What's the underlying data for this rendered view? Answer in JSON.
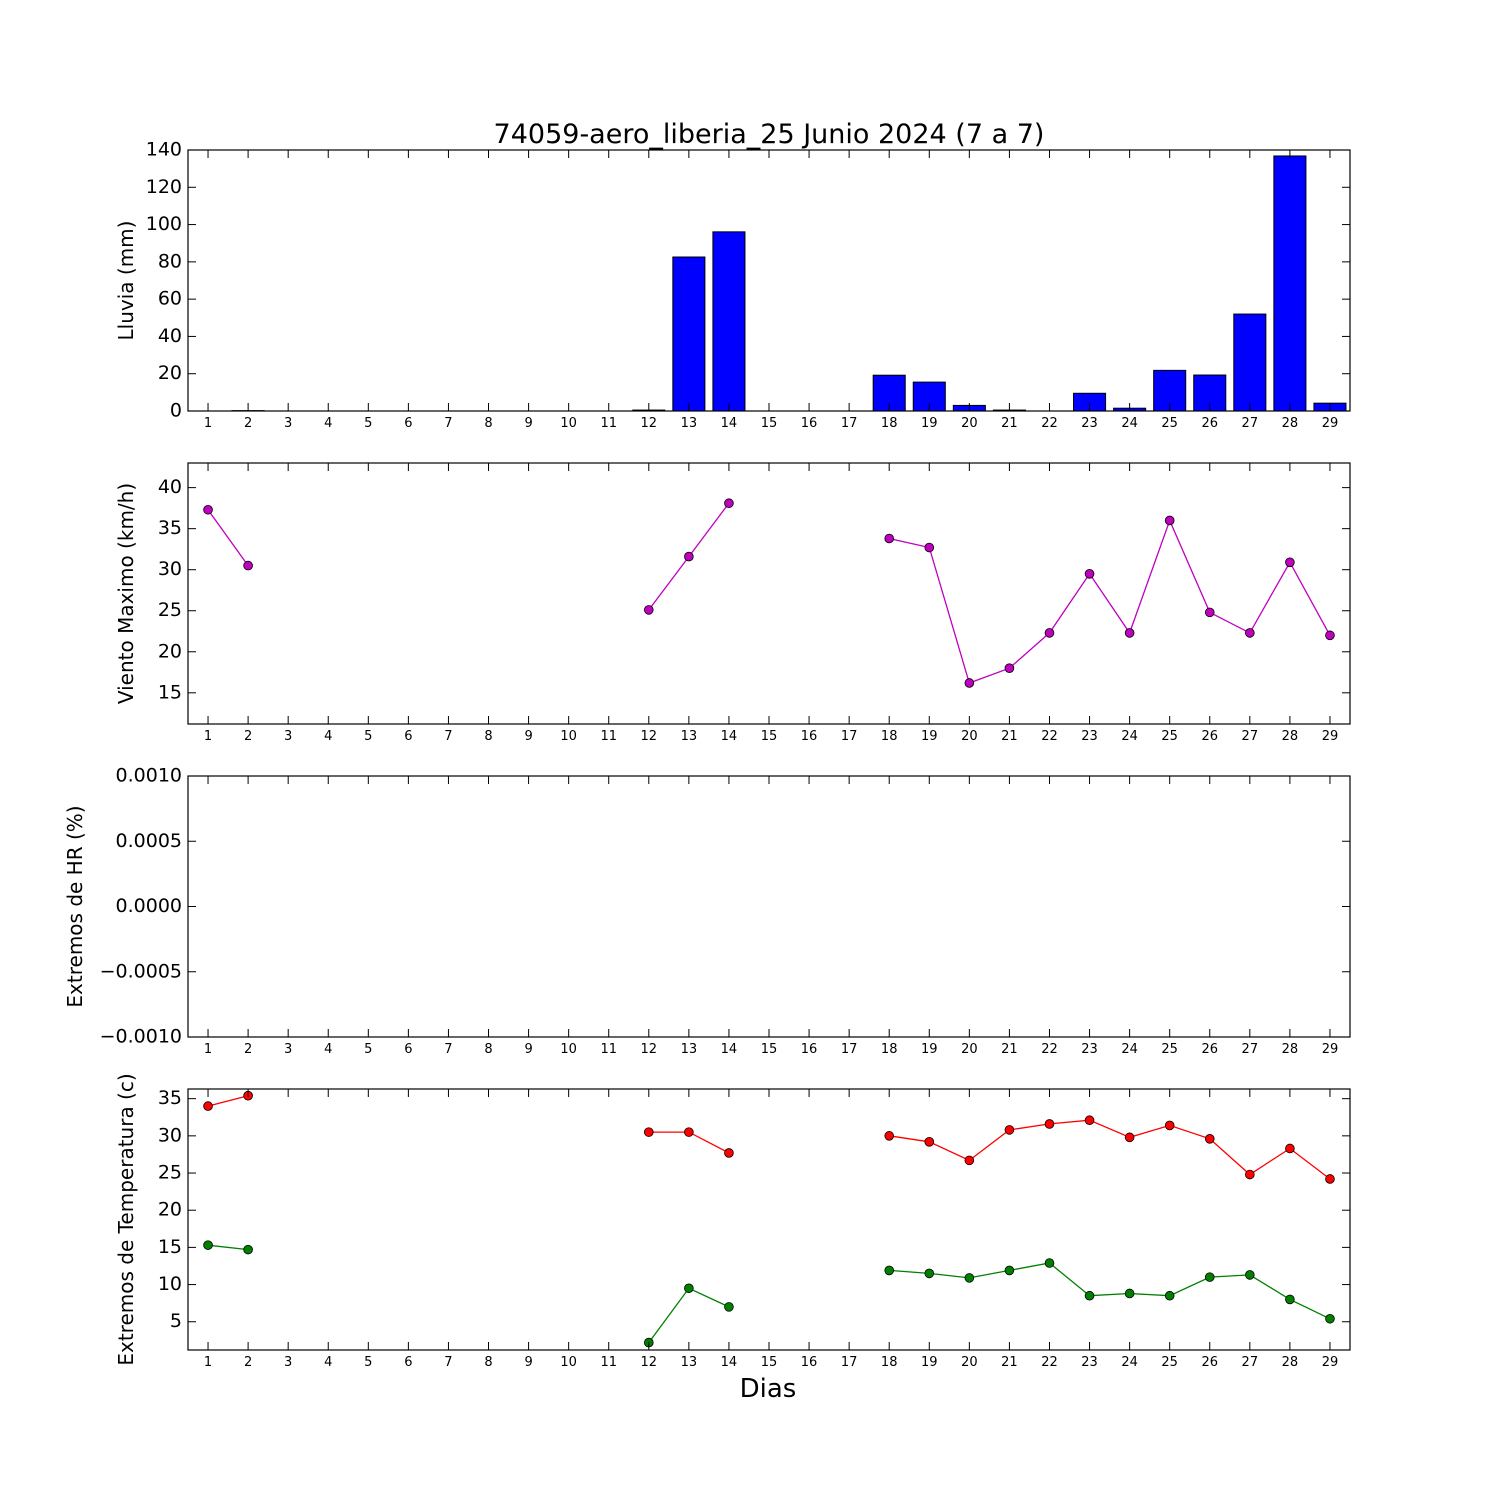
{
  "figure": {
    "title": "74059-aero_liberia_25 Junio 2024  (7 a 7)",
    "xlabel": "Dias"
  },
  "chart_data": [
    {
      "type": "bar",
      "ylabel": "Lluvia (mm)",
      "ylim": [
        0,
        140
      ],
      "yticks": [
        "0",
        "20",
        "40",
        "60",
        "80",
        "100",
        "120",
        "140"
      ],
      "x": [
        1,
        2,
        3,
        4,
        5,
        6,
        7,
        8,
        9,
        10,
        11,
        12,
        13,
        14,
        15,
        16,
        17,
        18,
        19,
        20,
        21,
        22,
        23,
        24,
        25,
        26,
        27,
        28,
        29
      ],
      "series": [
        {
          "color": "#0000ff",
          "values": [
            0,
            0.2,
            0,
            0,
            0,
            0,
            0,
            0,
            0,
            0,
            0,
            0.5,
            82.6,
            96.1,
            0,
            0,
            0,
            19.2,
            15.5,
            3,
            0.5,
            0,
            9.5,
            1.5,
            21.8,
            19.3,
            52,
            136.8,
            4.2
          ]
        }
      ]
    },
    {
      "type": "line",
      "ylabel": "Viento Maximo (km/h)",
      "ylim": [
        11.2,
        43.0
      ],
      "yticks": [
        "15",
        "20",
        "25",
        "30",
        "35",
        "40"
      ],
      "x": [
        1,
        2,
        3,
        4,
        5,
        6,
        7,
        8,
        9,
        10,
        11,
        12,
        13,
        14,
        15,
        16,
        17,
        18,
        19,
        20,
        21,
        22,
        23,
        24,
        25,
        26,
        27,
        28,
        29
      ],
      "series": [
        {
          "color": "#bf00bf",
          "values": [
            37.3,
            30.5,
            null,
            null,
            null,
            null,
            null,
            null,
            null,
            null,
            null,
            25.1,
            31.6,
            38.1,
            null,
            null,
            null,
            33.8,
            32.7,
            16.2,
            18.0,
            22.3,
            29.5,
            22.3,
            36.0,
            24.8,
            22.3,
            30.9,
            22.0
          ]
        }
      ]
    },
    {
      "type": "line",
      "ylabel": "Extremos de HR (%)",
      "ylim": [
        -0.001,
        0.001
      ],
      "yticks": [
        "−0.0010",
        "−0.0005",
        "0.0000",
        "0.0005",
        "0.0010"
      ],
      "x": [
        1,
        2,
        3,
        4,
        5,
        6,
        7,
        8,
        9,
        10,
        11,
        12,
        13,
        14,
        15,
        16,
        17,
        18,
        19,
        20,
        21,
        22,
        23,
        24,
        25,
        26,
        27,
        28,
        29
      ],
      "series": []
    },
    {
      "type": "line",
      "ylabel": "Extremos de Temperatura (c)",
      "ylim": [
        1.2,
        36.3
      ],
      "yticks": [
        "5",
        "10",
        "15",
        "20",
        "25",
        "30",
        "35"
      ],
      "x": [
        1,
        2,
        3,
        4,
        5,
        6,
        7,
        8,
        9,
        10,
        11,
        12,
        13,
        14,
        15,
        16,
        17,
        18,
        19,
        20,
        21,
        22,
        23,
        24,
        25,
        26,
        27,
        28,
        29
      ],
      "series": [
        {
          "color": "#ff0000",
          "values": [
            34.0,
            35.4,
            null,
            null,
            null,
            null,
            null,
            null,
            null,
            null,
            null,
            30.5,
            30.5,
            27.7,
            null,
            null,
            null,
            30.0,
            29.2,
            26.7,
            30.8,
            31.6,
            32.1,
            29.8,
            31.4,
            29.6,
            24.8,
            28.3,
            24.2
          ]
        },
        {
          "color": "#007f00",
          "values": [
            15.3,
            14.7,
            null,
            null,
            null,
            null,
            null,
            null,
            null,
            null,
            null,
            2.2,
            9.5,
            7.0,
            null,
            null,
            null,
            11.9,
            11.5,
            10.9,
            11.9,
            12.9,
            8.5,
            8.8,
            8.5,
            11.0,
            11.3,
            8.0,
            5.4
          ]
        }
      ]
    }
  ]
}
